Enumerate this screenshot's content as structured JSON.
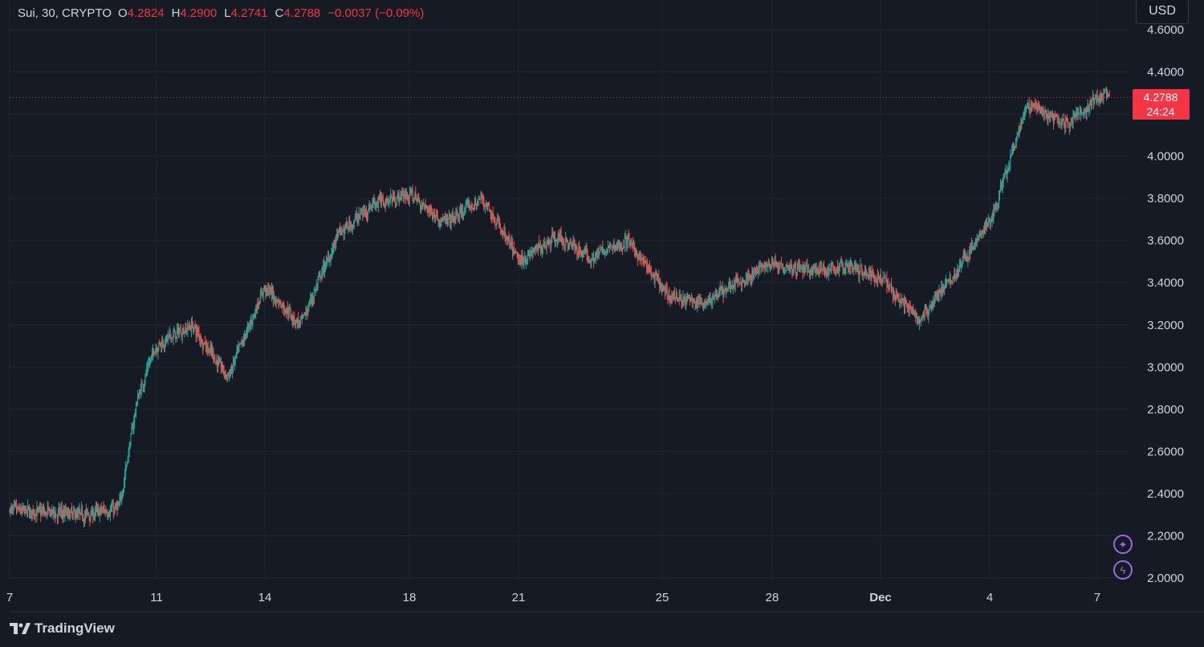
{
  "header": {
    "symbol": "Sui, 30, CRYPTO",
    "open_label": "O",
    "open_value": "4.2824",
    "high_label": "H",
    "high_value": "4.2900",
    "low_label": "L",
    "low_value": "4.2741",
    "close_label": "C",
    "close_value": "4.2788",
    "change": "−0.0037 (−0.09%)"
  },
  "currency_button": "USD",
  "price_tag": {
    "price": "4.2788",
    "countdown": "24:24"
  },
  "brand": "TradingView",
  "icons": {
    "sparkle": "sparkle-icon",
    "lightning": "lightning-icon"
  },
  "colors": {
    "background": "#161a25",
    "grid": "#232632",
    "up": "#26a69a",
    "down": "#ef5350",
    "price_line": "#f23645",
    "text": "#d1d4dc",
    "accent": "#9c6ade"
  },
  "chart_data": {
    "type": "candlestick",
    "symbol": "Sui",
    "interval": "30",
    "exchange": "CRYPTO",
    "currency": "USD",
    "ylim": [
      2.0,
      4.6
    ],
    "y_ticks": [
      "4.6000",
      "4.4000",
      "4.2000",
      "4.0000",
      "3.8000",
      "3.6000",
      "3.4000",
      "3.2000",
      "3.0000",
      "2.8000",
      "2.6000",
      "2.4000",
      "2.2000",
      "2.0000"
    ],
    "x_ticks": [
      "7",
      "11",
      "14",
      "18",
      "21",
      "25",
      "28",
      "Dec",
      "4",
      "7"
    ],
    "last_price": 4.2788,
    "grid": true,
    "close_path": {
      "x": [
        "Nov 7",
        "Nov 9",
        "Nov 10",
        "Nov 10 12:00",
        "Nov 11",
        "Nov 12",
        "Nov 13",
        "Nov 14",
        "Nov 15",
        "Nov 16",
        "Nov 17",
        "Nov 18",
        "Nov 19",
        "Nov 20",
        "Nov 21",
        "Nov 22",
        "Nov 23",
        "Nov 24",
        "Nov 25",
        "Nov 26",
        "Nov 27",
        "Nov 28",
        "Nov 29",
        "Nov 30",
        "Dec 1",
        "Dec 2",
        "Dec 3",
        "Dec 4",
        "Dec 5",
        "Dec 6",
        "Dec 7"
      ],
      "y": [
        2.32,
        2.3,
        2.33,
        2.85,
        3.1,
        3.2,
        2.95,
        3.38,
        3.2,
        3.62,
        3.78,
        3.82,
        3.68,
        3.8,
        3.5,
        3.62,
        3.52,
        3.6,
        3.35,
        3.3,
        3.4,
        3.5,
        3.45,
        3.48,
        3.42,
        3.22,
        3.45,
        3.7,
        4.25,
        4.15,
        4.28
      ]
    }
  }
}
